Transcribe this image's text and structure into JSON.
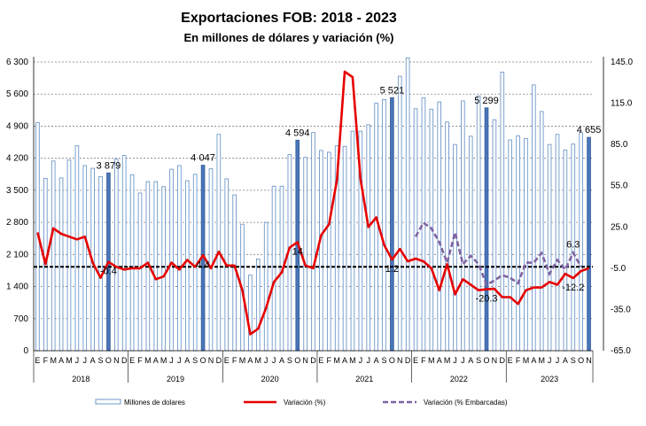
{
  "chart_data": {
    "type": "bar",
    "title": "Exportaciones FOB: 2018 - 2023",
    "subtitle": "En millones de dólares y variación (%)",
    "years": [
      "2018",
      "2019",
      "2020",
      "2021",
      "2022",
      "2023"
    ],
    "month_labels": [
      "E",
      "F",
      "M",
      "A",
      "M",
      "J",
      "J",
      "A",
      "S",
      "O",
      "N",
      "D"
    ],
    "y_left": {
      "min": 0,
      "max": 6300,
      "ticks": [
        0,
        700,
        1400,
        2100,
        2800,
        3500,
        4200,
        4900,
        5600,
        6300
      ],
      "tick_labels": [
        "0",
        "700",
        "1 400",
        "2 100",
        "2 800",
        "3 500",
        "4 200",
        "4 900",
        "5 600",
        "6 300"
      ]
    },
    "y_right": {
      "min": -65,
      "max": 145,
      "ticks": [
        -65,
        -35,
        -5,
        25,
        55,
        85,
        115,
        145
      ],
      "tick_labels": [
        "-65.0",
        "-35.0",
        "-5.0",
        "25.0",
        "55.0",
        "85.0",
        "115.0",
        "145.0"
      ]
    },
    "series": [
      {
        "name": "Millones de dolares",
        "kind": "bar",
        "color": "#6f97c9",
        "values": [
          4980,
          3760,
          4140,
          3770,
          4160,
          4470,
          4040,
          3980,
          3800,
          3879,
          4180,
          4260,
          3840,
          3440,
          3690,
          3690,
          3580,
          3960,
          4040,
          3710,
          3850,
          4047,
          3970,
          4720,
          3750,
          3400,
          2760,
          1650,
          2000,
          2800,
          3590,
          3590,
          4280,
          4594,
          4220,
          4760,
          4370,
          4330,
          4470,
          4460,
          4790,
          4790,
          4930,
          5400,
          5480,
          5521,
          5990,
          6390,
          5280,
          5520,
          5270,
          5430,
          4990,
          4500,
          5450,
          4680,
          5560,
          5299,
          5040,
          6080,
          4600,
          4690,
          4630,
          5800,
          5220,
          4500,
          4720,
          4380,
          4510,
          4760,
          4655
        ],
        "highlight_months": [
          "2018-10",
          "2019-10",
          "2020-10",
          "2021-10",
          "2022-10",
          "2023-11"
        ]
      },
      {
        "name": "Variación (%)",
        "kind": "line",
        "color": "#e60000",
        "values": [
          21,
          -2,
          24,
          20,
          18,
          16,
          18,
          -1,
          -12,
          -0.4,
          -4,
          -6,
          -5,
          -5,
          -1,
          -13,
          -11,
          -1,
          -6,
          1,
          -4,
          4.4,
          -5,
          7,
          -3,
          -3,
          -21,
          -53,
          -49,
          -34,
          -15,
          -8,
          10,
          14.0,
          -3,
          -5,
          19,
          27,
          59,
          138,
          134,
          60,
          25,
          32,
          12,
          1.2,
          9,
          0,
          2,
          0,
          -5,
          -21,
          -2,
          -24,
          -13,
          -17,
          -21,
          -20.3,
          -20,
          -26,
          -26,
          -31,
          -21,
          -19,
          -19,
          -15,
          -17,
          -9,
          -12.2,
          -7,
          -5
        ]
      },
      {
        "name": "Variación (% Embarcadas)",
        "kind": "line",
        "style": "dashed",
        "color": "#8064a2",
        "values": [
          null,
          null,
          null,
          null,
          null,
          null,
          null,
          null,
          null,
          null,
          null,
          null,
          null,
          null,
          null,
          null,
          null,
          null,
          null,
          null,
          null,
          null,
          null,
          null,
          null,
          null,
          null,
          null,
          null,
          null,
          null,
          null,
          null,
          null,
          null,
          null,
          null,
          null,
          null,
          null,
          null,
          null,
          null,
          null,
          null,
          null,
          null,
          null,
          18,
          28,
          24,
          14,
          -1,
          21,
          -2,
          4,
          -2,
          -17,
          -14,
          -10,
          -12,
          -16,
          -1,
          -1,
          6,
          -9,
          1,
          -6,
          6.3,
          -4,
          null
        ]
      }
    ],
    "reference_line": {
      "value": -4,
      "axis": "right",
      "style": "dashed",
      "color": "#000000"
    },
    "bar_labels": [
      {
        "index": 9,
        "text": "3 879"
      },
      {
        "index": 21,
        "text": "4 047"
      },
      {
        "index": 33,
        "text": "4 594"
      },
      {
        "index": 45,
        "text": "5 521"
      },
      {
        "index": 57,
        "text": "5 299"
      },
      {
        "index": 70,
        "text": "4 655"
      }
    ],
    "line_labels": [
      {
        "index": 9,
        "text": "-0.4"
      },
      {
        "index": 21,
        "text": "4.4"
      },
      {
        "index": 33,
        "text": "14"
      },
      {
        "index": 45,
        "text": "1.2"
      },
      {
        "index": 57,
        "text": "-20.3"
      },
      {
        "index": 68,
        "text": "-12.2"
      },
      {
        "index": 68,
        "text": "6.3",
        "series": "embarcadas"
      }
    ],
    "legend": [
      {
        "label": "Millones de dolares",
        "kind": "bar"
      },
      {
        "label": "Variación (%)",
        "kind": "line"
      },
      {
        "label": "Variación (% Embarcadas)",
        "kind": "dashed"
      }
    ],
    "legend_placement": "bottom",
    "grid": true
  }
}
